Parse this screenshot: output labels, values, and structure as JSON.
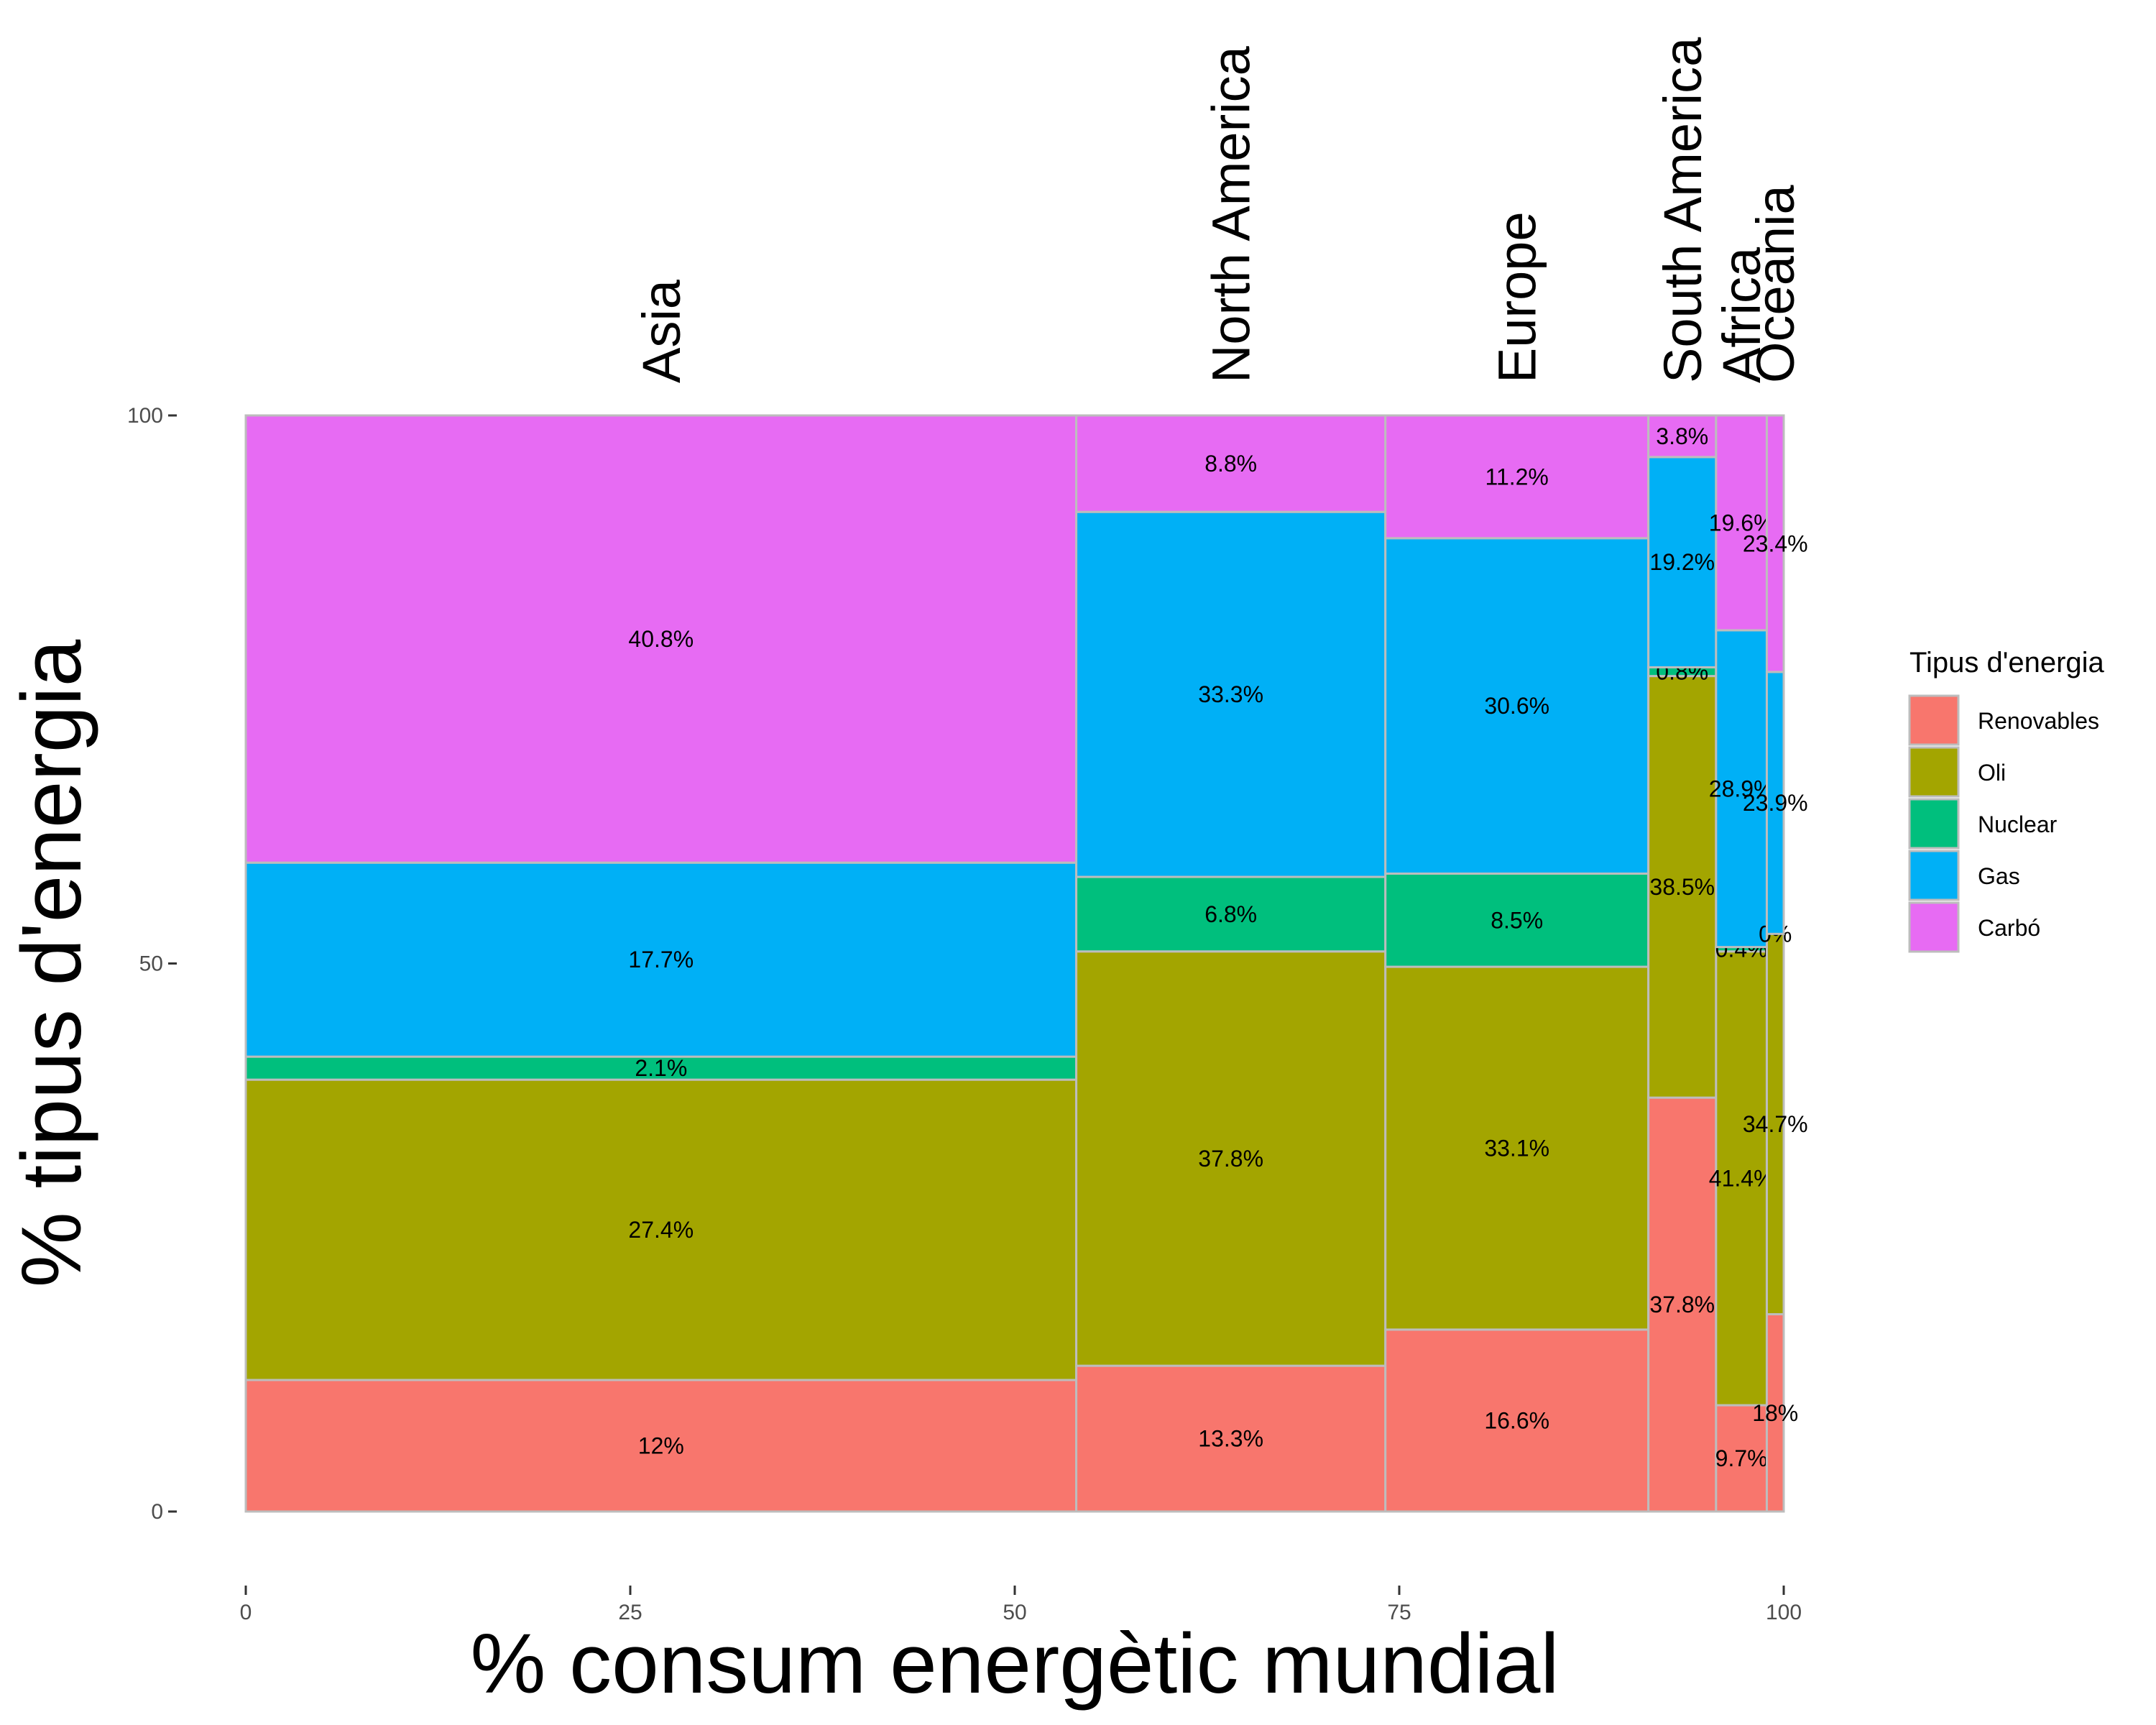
{
  "chart_data": {
    "type": "mosaic",
    "xlabel": "% consum energètic mundial",
    "ylabel": "% tipus d'energia",
    "xlim": [
      0,
      100
    ],
    "ylim": [
      0,
      100
    ],
    "x_ticks": [
      "0",
      "25",
      "50",
      "75",
      "100"
    ],
    "y_ticks": [
      "0",
      "50",
      "100"
    ],
    "grid": false,
    "legend": {
      "title": "Tipus d'energia",
      "position": "right",
      "items": [
        {
          "name": "Renovables",
          "color": "#F8766D"
        },
        {
          "name": "Oli",
          "color": "#A3A500"
        },
        {
          "name": "Nuclear",
          "color": "#00BF7D"
        },
        {
          "name": "Gas",
          "color": "#00B0F6"
        },
        {
          "name": "Carbó",
          "color": "#E76BF3"
        }
      ]
    },
    "energy_types": [
      "Renovables",
      "Oli",
      "Nuclear",
      "Gas",
      "Carbó"
    ],
    "regions": [
      {
        "name": "Asia",
        "share": 54.0,
        "values": [
          12.0,
          27.4,
          2.1,
          17.7,
          40.8
        ],
        "labels": [
          "12%",
          "27.4%",
          "2.1%",
          "17.7%",
          "40.8%"
        ]
      },
      {
        "name": "North America",
        "share": 20.1,
        "values": [
          13.3,
          37.8,
          6.8,
          33.3,
          8.8
        ],
        "labels": [
          "13.3%",
          "37.8%",
          "6.8%",
          "33.3%",
          "8.8%"
        ]
      },
      {
        "name": "Europe",
        "share": 17.1,
        "values": [
          16.6,
          33.1,
          8.5,
          30.6,
          11.2
        ],
        "labels": [
          "16.6%",
          "33.1%",
          "8.5%",
          "30.6%",
          "11.2%"
        ]
      },
      {
        "name": "South America",
        "share": 4.4,
        "values": [
          37.8,
          38.5,
          0.8,
          19.2,
          3.8
        ],
        "labels": [
          "37.8%",
          "38.5%",
          "0.8%",
          "19.2%",
          "3.8%"
        ]
      },
      {
        "name": "Africa",
        "share": 3.3,
        "values": [
          9.7,
          41.4,
          0.4,
          28.9,
          19.6
        ],
        "labels": [
          "9.7%",
          "41.4%",
          "0.4%",
          "28.9%",
          "19.6%"
        ]
      },
      {
        "name": "Oceania",
        "share": 1.1,
        "values": [
          18.0,
          34.7,
          0.0,
          23.9,
          23.4
        ],
        "labels": [
          "18%",
          "34.7%",
          "0%",
          "23.9%",
          "23.4%"
        ]
      }
    ]
  }
}
